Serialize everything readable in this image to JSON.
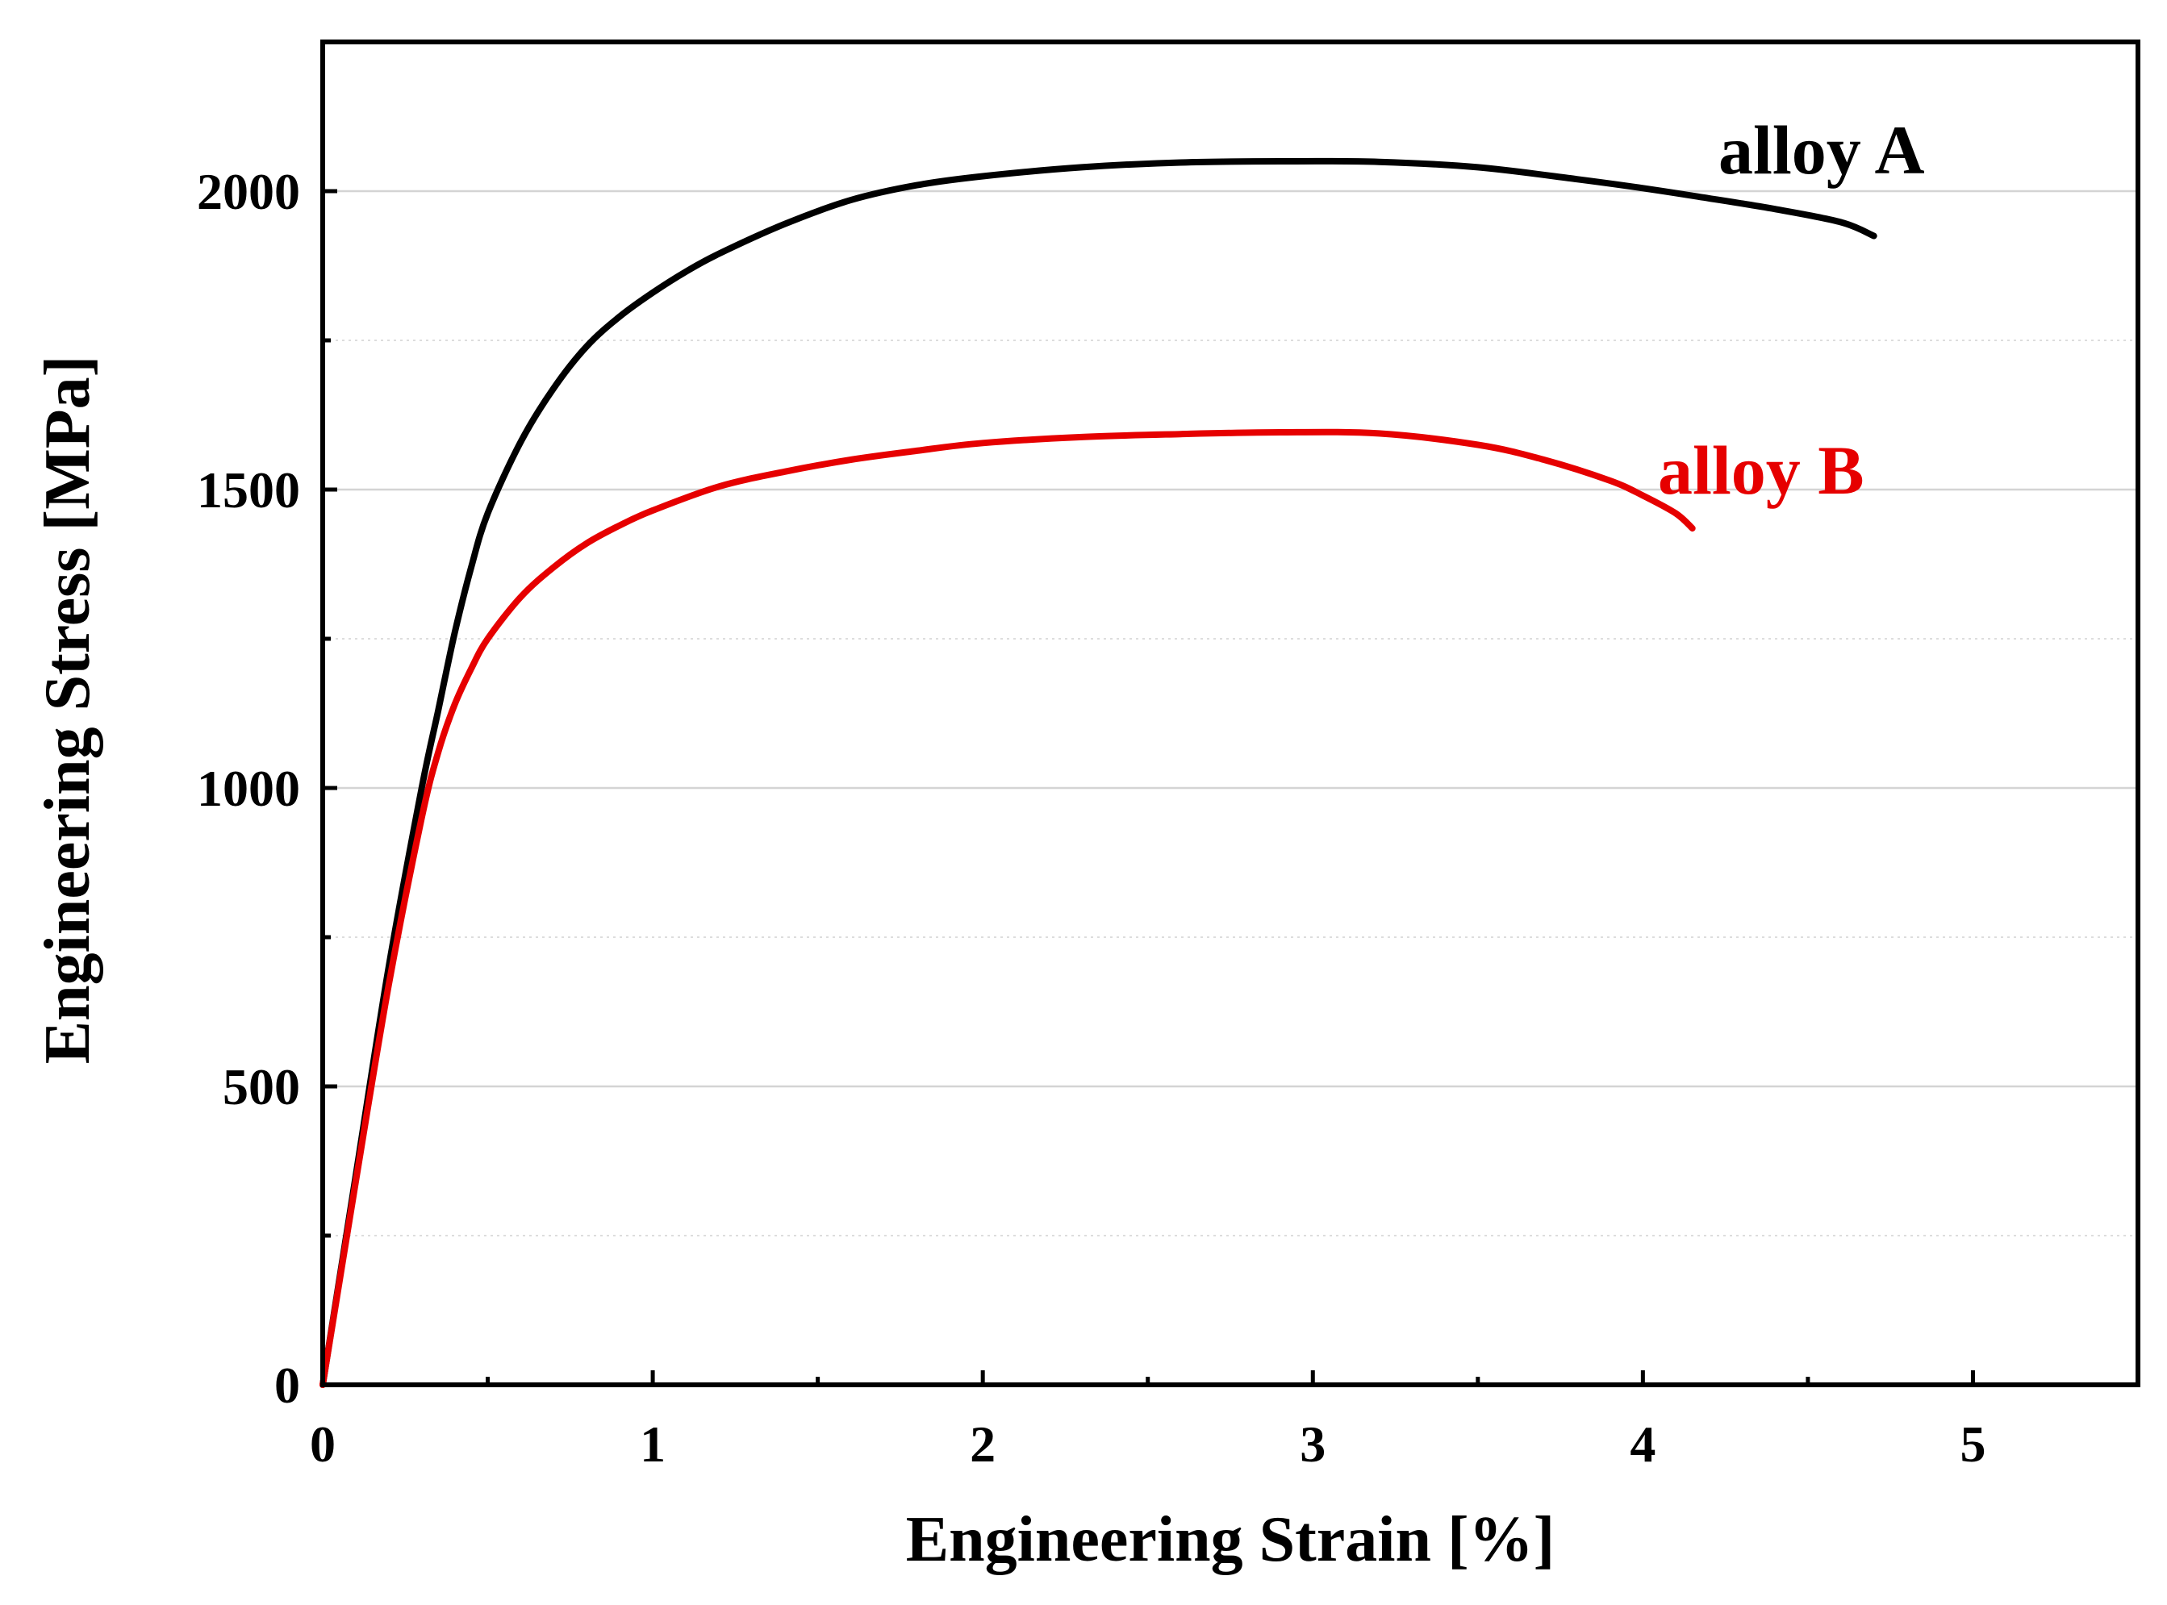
{
  "chart_data": {
    "type": "line",
    "title": "",
    "xlabel": "Engineering Strain [%]",
    "ylabel": "Engineering Stress [MPa]",
    "xlim": [
      0,
      5.5
    ],
    "ylim": [
      0,
      2250
    ],
    "x_ticks": [
      0,
      1,
      2,
      3,
      4,
      5
    ],
    "x_tick_labels": [
      "0",
      "1",
      "2",
      "3",
      "4",
      "5"
    ],
    "y_ticks": [
      0,
      500,
      1000,
      1500,
      2000
    ],
    "y_tick_labels": [
      "0",
      "500",
      "1000",
      "1500",
      "2000"
    ],
    "grid": true,
    "legend": "inline labels at curve ends",
    "series": [
      {
        "name": "alloy A",
        "color": "#000000",
        "x": [
          0,
          0.1,
          0.2,
          0.3,
          0.35,
          0.4,
          0.45,
          0.5,
          0.6,
          0.7,
          0.8,
          0.9,
          1.0,
          1.1,
          1.2,
          1.4,
          1.6,
          1.8,
          2.0,
          2.3,
          2.6,
          2.9,
          3.2,
          3.5,
          3.8,
          4.0,
          4.2,
          4.4,
          4.6,
          4.7
        ],
        "y": [
          0,
          350,
          700,
          1000,
          1130,
          1260,
          1370,
          1460,
          1580,
          1670,
          1740,
          1790,
          1830,
          1865,
          1895,
          1945,
          1985,
          2010,
          2025,
          2040,
          2048,
          2050,
          2049,
          2040,
          2020,
          2005,
          1988,
          1970,
          1948,
          1925
        ]
      },
      {
        "name": "alloy B",
        "color": "#e60000",
        "x": [
          0,
          0.1,
          0.2,
          0.3,
          0.35,
          0.4,
          0.45,
          0.5,
          0.6,
          0.7,
          0.8,
          0.9,
          1.0,
          1.2,
          1.4,
          1.6,
          1.8,
          2.0,
          2.3,
          2.6,
          2.9,
          3.2,
          3.5,
          3.7,
          3.9,
          4.0,
          4.1,
          4.15
        ],
        "y": [
          0,
          340,
          670,
          950,
          1060,
          1140,
          1200,
          1250,
          1320,
          1370,
          1410,
          1440,
          1465,
          1505,
          1530,
          1550,
          1565,
          1578,
          1588,
          1593,
          1596,
          1594,
          1575,
          1550,
          1515,
          1490,
          1460,
          1435
        ]
      }
    ]
  }
}
